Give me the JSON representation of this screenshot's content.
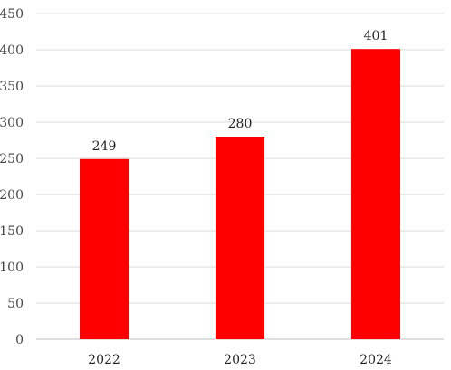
{
  "chart_data": {
    "type": "bar",
    "categories": [
      "2022",
      "2023",
      "2024"
    ],
    "values": [
      249,
      280,
      401
    ],
    "data_labels": [
      "249",
      "280",
      "401"
    ],
    "ylim": [
      0,
      450
    ],
    "yticks": [
      0,
      50,
      100,
      150,
      200,
      250,
      300,
      350,
      400,
      450
    ],
    "grid": true,
    "legend": "none",
    "bar_color": "#ff0000",
    "title": "",
    "xlabel": "",
    "ylabel": ""
  }
}
